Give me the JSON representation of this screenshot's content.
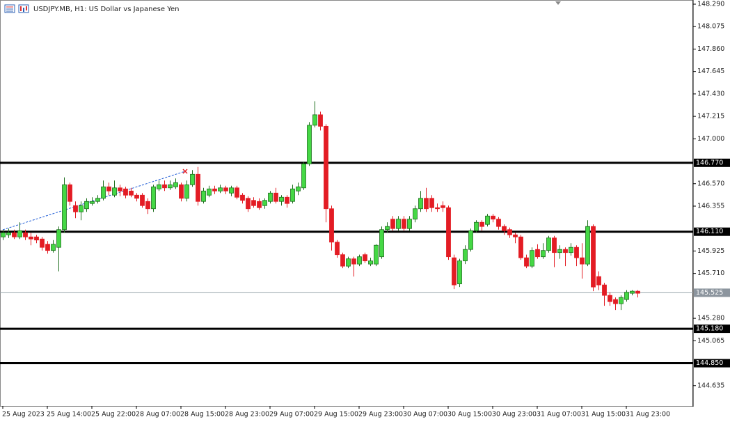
{
  "chart_data": {
    "type": "candlestick",
    "title": "USDJPY.MB, H1:  US Dollar vs Japanese Yen",
    "bull_color": "#45d845",
    "bear_color": "#e31c24",
    "ylim": [
      144.44,
      148.33
    ],
    "yticks": [
      {
        "value": 148.29,
        "label": "148.290"
      },
      148.075,
      {
        "value": 147.86,
        "label": "147.860"
      },
      147.645,
      {
        "value": 147.43,
        "label": "147.430"
      },
      147.215,
      {
        "value": 147.0,
        "label": "147.000"
      },
      {
        "value": 146.57,
        "label": "146.570"
      },
      146.355,
      145.925,
      {
        "value": 145.71,
        "label": "145.710"
      },
      {
        "value": 145.28,
        "label": "145.280"
      },
      145.065,
      144.635
    ],
    "levels": [
      {
        "value": 146.77,
        "label": "146.770"
      },
      {
        "value": 146.11,
        "label": "146.110"
      },
      {
        "value": 145.18,
        "label": "145.180"
      },
      {
        "value": 144.85,
        "label": "144.850"
      }
    ],
    "last_price": {
      "value": 145.525,
      "label": "145.525"
    },
    "categories": [
      "25 Aug 2023",
      null,
      null,
      null,
      null,
      null,
      null,
      null,
      "25 Aug 14:00",
      null,
      null,
      null,
      null,
      null,
      null,
      null,
      "25 Aug 22:00",
      null,
      null,
      null,
      null,
      null,
      null,
      null,
      "28 Aug 07:00",
      null,
      null,
      null,
      null,
      null,
      null,
      null,
      "28 Aug 15:00",
      null,
      null,
      null,
      null,
      null,
      null,
      null,
      "28 Aug 23:00",
      null,
      null,
      null,
      null,
      null,
      null,
      null,
      "29 Aug 07:00",
      null,
      null,
      null,
      null,
      null,
      null,
      null,
      "29 Aug 15:00",
      null,
      null,
      null,
      null,
      null,
      null,
      null,
      "29 Aug 23:00",
      null,
      null,
      null,
      null,
      null,
      null,
      null,
      "30 Aug 07:00",
      null,
      null,
      null,
      null,
      null,
      null,
      null,
      "30 Aug 15:00",
      null,
      null,
      null,
      null,
      null,
      null,
      null,
      "30 Aug 23:00",
      null,
      null,
      null,
      null,
      null,
      null,
      null,
      "31 Aug 07:00",
      null,
      null,
      null,
      null,
      null,
      null,
      null,
      "31 Aug 15:00",
      null,
      null,
      null,
      null,
      null,
      null,
      null,
      "31 Aug 23:00",
      null,
      null
    ],
    "open": [
      146.06,
      146.08,
      146.1,
      146.06,
      146.1,
      146.06,
      146.06,
      146.04,
      145.99,
      145.93,
      145.96,
      146.13,
      146.56,
      146.36,
      146.3,
      146.33,
      146.38,
      146.4,
      146.43,
      146.54,
      146.46,
      146.53,
      146.52,
      146.5,
      146.46,
      146.46,
      146.4,
      146.33,
      146.52,
      146.56,
      146.53,
      146.54,
      146.56,
      146.43,
      146.56,
      146.66,
      146.4,
      146.46,
      146.52,
      146.5,
      146.53,
      146.48,
      146.53,
      146.46,
      146.43,
      146.41,
      146.4,
      146.36,
      146.4,
      146.48,
      146.4,
      146.44,
      146.4,
      146.5,
      146.53,
      146.76,
      147.13,
      147.23,
      147.12,
      146.33,
      146.01,
      145.89,
      145.78,
      145.85,
      145.8,
      145.89,
      145.8,
      145.8,
      145.87,
      146.13,
      146.23,
      146.14,
      146.23,
      146.14,
      146.23,
      146.33,
      146.43,
      146.43,
      146.34,
      146.36,
      146.34,
      145.86,
      145.61,
      145.83,
      145.94,
      146.12,
      146.2,
      146.18,
      146.26,
      146.23,
      146.16,
      146.13,
      146.08,
      146.06,
      145.86,
      145.78,
      145.94,
      145.87,
      145.93,
      146.05,
      145.91,
      145.94,
      145.91,
      145.96,
      145.86,
      145.8,
      146.16,
      145.68,
      145.6,
      145.5,
      145.46,
      145.42,
      145.46,
      145.52,
      145.54
    ],
    "high": [
      146.13,
      146.14,
      146.13,
      146.2,
      146.13,
      146.1,
      146.08,
      146.06,
      146.02,
      146.03,
      146.16,
      146.63,
      146.58,
      146.4,
      146.4,
      146.43,
      146.44,
      146.46,
      146.6,
      146.58,
      146.6,
      146.56,
      146.54,
      146.53,
      146.48,
      146.48,
      146.43,
      146.56,
      146.6,
      146.6,
      146.6,
      146.62,
      146.58,
      146.6,
      146.7,
      146.73,
      146.53,
      146.55,
      146.55,
      146.56,
      146.55,
      146.55,
      146.55,
      146.48,
      146.45,
      146.44,
      146.43,
      146.43,
      146.5,
      146.53,
      146.46,
      146.46,
      146.56,
      146.58,
      146.78,
      147.16,
      147.36,
      147.26,
      147.14,
      146.36,
      146.03,
      145.91,
      145.87,
      145.87,
      145.89,
      145.91,
      145.86,
      145.99,
      146.16,
      146.2,
      146.26,
      146.26,
      146.26,
      146.26,
      146.36,
      146.5,
      146.53,
      146.46,
      146.38,
      146.4,
      146.36,
      145.89,
      145.85,
      145.98,
      146.14,
      146.22,
      146.22,
      146.28,
      146.28,
      146.25,
      146.18,
      146.15,
      146.1,
      146.08,
      145.89,
      145.96,
      145.99,
      146.0,
      146.07,
      146.07,
      145.98,
      145.96,
      146.0,
      145.98,
      146.0,
      146.22,
      146.18,
      145.73,
      145.62,
      145.53,
      145.48,
      145.5,
      145.55,
      145.55,
      145.55
    ],
    "low": [
      146.03,
      146.05,
      146.04,
      146.04,
      146.03,
      145.98,
      146.0,
      145.93,
      145.9,
      145.91,
      145.73,
      146.1,
      146.36,
      146.24,
      146.22,
      146.3,
      146.36,
      146.38,
      146.41,
      146.46,
      146.44,
      146.45,
      146.43,
      146.44,
      146.4,
      146.34,
      146.28,
      146.3,
      146.5,
      146.5,
      146.51,
      146.52,
      146.4,
      146.4,
      146.54,
      146.36,
      146.38,
      146.44,
      146.47,
      146.48,
      146.47,
      146.45,
      146.42,
      146.38,
      146.3,
      146.34,
      146.32,
      146.33,
      146.38,
      146.38,
      146.36,
      146.34,
      146.38,
      146.46,
      146.51,
      146.74,
      147.11,
      147.08,
      146.2,
      145.93,
      145.86,
      145.76,
      145.76,
      145.68,
      145.78,
      145.81,
      145.78,
      145.78,
      145.85,
      146.1,
      146.12,
      146.12,
      146.12,
      146.12,
      146.2,
      146.3,
      146.3,
      146.3,
      146.3,
      146.3,
      145.84,
      145.56,
      145.58,
      145.8,
      145.92,
      146.1,
      146.12,
      146.16,
      146.2,
      146.13,
      146.08,
      146.05,
      146.0,
      145.84,
      145.76,
      145.76,
      145.85,
      145.85,
      145.91,
      145.77,
      145.85,
      145.78,
      145.88,
      145.78,
      145.66,
      145.78,
      145.54,
      145.55,
      145.4,
      145.4,
      145.36,
      145.36,
      145.44,
      145.5,
      145.48
    ],
    "close": [
      146.1,
      146.1,
      146.06,
      146.12,
      146.06,
      146.04,
      146.03,
      145.96,
      145.93,
      145.99,
      146.13,
      146.56,
      146.4,
      146.3,
      146.36,
      146.4,
      146.4,
      146.43,
      146.54,
      146.5,
      146.53,
      146.5,
      146.46,
      146.46,
      146.43,
      146.36,
      146.33,
      146.54,
      146.56,
      146.53,
      146.56,
      146.58,
      146.43,
      146.56,
      146.66,
      146.4,
      146.5,
      146.52,
      146.5,
      146.53,
      146.5,
      146.53,
      146.44,
      146.41,
      146.33,
      146.36,
      146.34,
      146.41,
      146.48,
      146.4,
      146.44,
      146.38,
      146.52,
      146.54,
      146.76,
      147.13,
      147.23,
      147.12,
      146.33,
      146.01,
      145.89,
      145.78,
      145.85,
      145.8,
      145.87,
      145.83,
      145.83,
      145.98,
      146.13,
      146.16,
      146.14,
      146.23,
      146.14,
      146.23,
      146.33,
      146.43,
      146.33,
      146.34,
      146.33,
      146.34,
      145.87,
      145.6,
      145.83,
      145.94,
      146.12,
      146.2,
      146.16,
      146.26,
      146.23,
      146.16,
      146.12,
      146.08,
      146.06,
      145.86,
      145.78,
      145.93,
      145.87,
      145.93,
      146.05,
      145.91,
      145.94,
      145.91,
      145.96,
      145.86,
      145.8,
      146.16,
      145.58,
      145.6,
      145.5,
      145.44,
      145.42,
      145.48,
      145.53,
      145.54,
      145.52
    ]
  }
}
